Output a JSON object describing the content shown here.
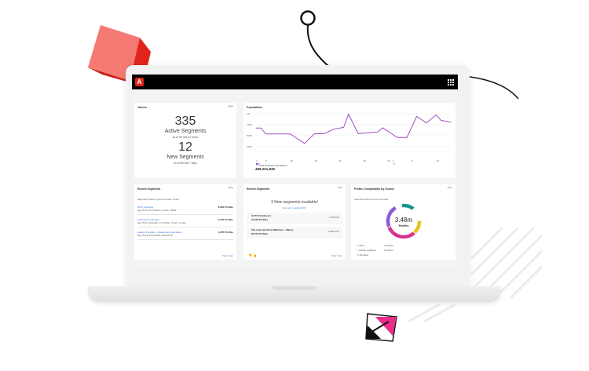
{
  "card_summary": {
    "title": "Janees",
    "active_count": "335",
    "active_label": "Active Segments",
    "active_sub": "as of the last 24 hours",
    "new_count": "12",
    "new_label": "New Segments",
    "new_sub": "as of the last 7 days"
  },
  "card_recent": {
    "title": "Recent Segments",
    "subtitle": "Segments built by you in the last 7 days",
    "items": [
      {
        "name": "Wi-Fi Travelers",
        "desc": "Age: 25-34 | Tty Travelers, income > $100k",
        "count": "8,000 Profiles"
      },
      {
        "name": "Adventurous families",
        "desc": "Age: 35-44 | Suburban, 2-4 Children, Travel > 2 years",
        "count": "5,205 Profiles"
      },
      {
        "name": "Leisure Travelers - Abandoned reservation",
        "desc": "Age: 35-44 | 40% Female, Platinum tier",
        "count": "1,205 Profiles"
      }
    ],
    "view_more": "View more"
  },
  "card_new": {
    "title": "Recent Segments",
    "headline": "3 New segments available!",
    "link": "How are I seeing this?",
    "items": [
      {
        "name": "4d TV Purchasers",
        "count": "10,000 Profiles",
        "status": "5/8 10:16"
      },
      {
        "name": "The Late late Show Watchers - Illinois",
        "count": "20,201 Profiles",
        "status": "2/28 10:16"
      }
    ],
    "view_more": "View more"
  },
  "card_profile": {
    "title": "Profile Composition by Source",
    "subtitle": "Sources shown by top 5 sources",
    "center_value": "3.48m",
    "center_label": "Profiles",
    "legend": [
      {
        "label": "Web",
        "color": "#2ca24f"
      },
      {
        "label": "Adobe Analytics",
        "color": "#e5c420"
      },
      {
        "label": "Zendesk",
        "color": "#d6338f"
      },
      {
        "label": "Mobile",
        "color": "#8e5ad6"
      },
      {
        "label": "Others",
        "color": "#16948f"
      }
    ]
  },
  "chart_data": {
    "type": "line",
    "title": "Populations",
    "legend": "Total Segment Populations",
    "total": "498,201,835",
    "color": "#a04fbf",
    "yticks": [
      "1M",
      "750K",
      "500K",
      "250K"
    ],
    "ylim": [
      0,
      1000000
    ],
    "xticks": [
      {
        "label": "3",
        "sub": "June",
        "date": "2019-06-03"
      },
      {
        "label": "5",
        "date": "2019-06-05"
      },
      {
        "label": "10",
        "date": "2019-06-10"
      },
      {
        "label": "15",
        "date": "2019-06-15"
      },
      {
        "label": "20",
        "date": "2019-06-20"
      },
      {
        "label": "25",
        "date": "2019-06-25"
      },
      {
        "label": "30",
        "date": "2019-06-30"
      },
      {
        "label": "1",
        "sub": "July",
        "date": "2019-07-01"
      },
      {
        "label": "5",
        "date": "2019-07-05"
      },
      {
        "label": "10",
        "date": "2019-07-10"
      }
    ],
    "xlim": [
      "2019-06-03",
      "2019-07-13"
    ],
    "points": [
      [
        "2019-06-03",
        675000
      ],
      [
        "2019-06-04",
        675000
      ],
      [
        "2019-06-05",
        540000
      ],
      [
        "2019-06-10",
        540000
      ],
      [
        "2019-06-13",
        325000
      ],
      [
        "2019-06-15",
        545000
      ],
      [
        "2019-06-17",
        545000
      ],
      [
        "2019-06-19",
        650000
      ],
      [
        "2019-06-21",
        690000
      ],
      [
        "2019-06-22",
        990000
      ],
      [
        "2019-06-24",
        545000
      ],
      [
        "2019-06-28",
        585000
      ],
      [
        "2019-06-29",
        680000
      ],
      [
        "2019-07-02",
        460000
      ],
      [
        "2019-07-04",
        460000
      ],
      [
        "2019-07-06",
        940000
      ],
      [
        "2019-07-08",
        790000
      ],
      [
        "2019-07-10",
        975000
      ],
      [
        "2019-07-11",
        850000
      ],
      [
        "2019-07-13",
        805000
      ]
    ]
  },
  "donut": [
    {
      "color": "#16948f",
      "share": 0.12
    },
    {
      "color": "#e5c420",
      "share": 0.13
    },
    {
      "color": "#d6338f",
      "share": 0.3
    },
    {
      "color": "#8e5ad6",
      "share": 0.22
    }
  ]
}
